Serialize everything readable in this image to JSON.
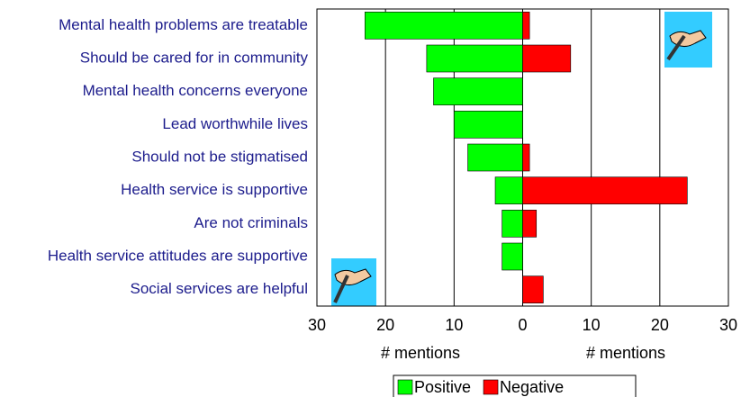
{
  "chart_data": {
    "type": "diverging-bar",
    "categories": [
      "Mental health problems are treatable",
      "Should be cared for in community",
      "Mental health concerns everyone",
      "Lead worthwhile lives",
      "Should not be stigmatised",
      "Health service is supportive",
      "Are not criminals",
      "Health service attitudes are supportive",
      "Social services are helpful"
    ],
    "series": [
      {
        "name": "Positive",
        "color": "#00ff00",
        "values": [
          -23,
          -14,
          -13,
          -10,
          -8,
          -4,
          -3,
          -3,
          0
        ]
      },
      {
        "name": "Negative",
        "color": "#ff0000",
        "values": [
          1,
          7,
          0,
          0,
          1,
          24,
          2,
          0,
          3
        ]
      }
    ],
    "xlim": [
      -30,
      30
    ],
    "xticks": [
      {
        "value": -30,
        "label": "30"
      },
      {
        "value": -20,
        "label": "20"
      },
      {
        "value": -10,
        "label": "10"
      },
      0,
      10,
      20,
      30
    ],
    "xlabels": [
      "# mentions",
      "# mentions"
    ],
    "grid": true,
    "legend": "bottom"
  }
}
